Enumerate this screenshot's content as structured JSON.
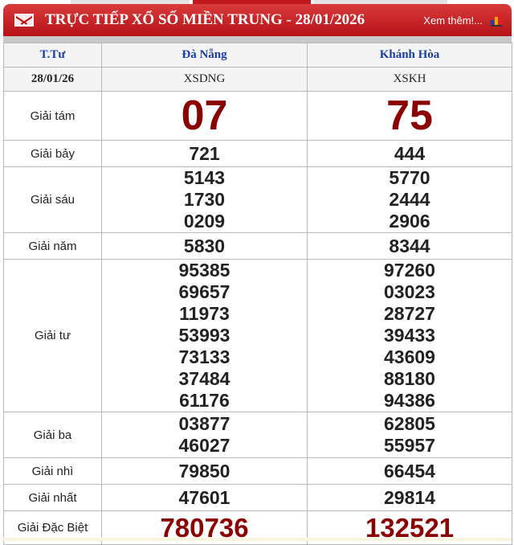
{
  "header": {
    "title": "TRỰC TIẾP XỔ SỐ MIỀN TRUNG - 28/01/2026",
    "more_link": "Xem thêm!...",
    "colors": {
      "accent": "#c0161c",
      "prize_highlight": "#8b0000",
      "column_header": "#1a3ea0"
    }
  },
  "table": {
    "columns": [
      "T.Tư",
      "Đà Nẵng",
      "Khánh Hòa"
    ],
    "date_row": [
      "28/01/26",
      "XSDNG",
      "XSKH"
    ],
    "prizes": [
      {
        "label": "Giải tám",
        "dn": [
          "07"
        ],
        "kh": [
          "75"
        ]
      },
      {
        "label": "Giải bảy",
        "dn": [
          "721"
        ],
        "kh": [
          "444"
        ]
      },
      {
        "label": "Giải sáu",
        "dn": [
          "5143",
          "1730",
          "0209"
        ],
        "kh": [
          "5770",
          "2444",
          "2906"
        ]
      },
      {
        "label": "Giải năm",
        "dn": [
          "5830"
        ],
        "kh": [
          "8344"
        ]
      },
      {
        "label": "Giải tư",
        "dn": [
          "95385",
          "69657",
          "11973",
          "53993",
          "73133",
          "37484",
          "61176"
        ],
        "kh": [
          "97260",
          "03023",
          "28727",
          "39433",
          "43609",
          "88180",
          "94386"
        ]
      },
      {
        "label": "Giải ba",
        "dn": [
          "03877",
          "46027"
        ],
        "kh": [
          "62805",
          "55957"
        ]
      },
      {
        "label": "Giải nhì",
        "dn": [
          "79850"
        ],
        "kh": [
          "66454"
        ]
      },
      {
        "label": "Giải nhất",
        "dn": [
          "47601"
        ],
        "kh": [
          "29814"
        ]
      },
      {
        "label": "Giải Đặc Biệt",
        "dn": [
          "780736"
        ],
        "kh": [
          "132521"
        ]
      }
    ]
  }
}
